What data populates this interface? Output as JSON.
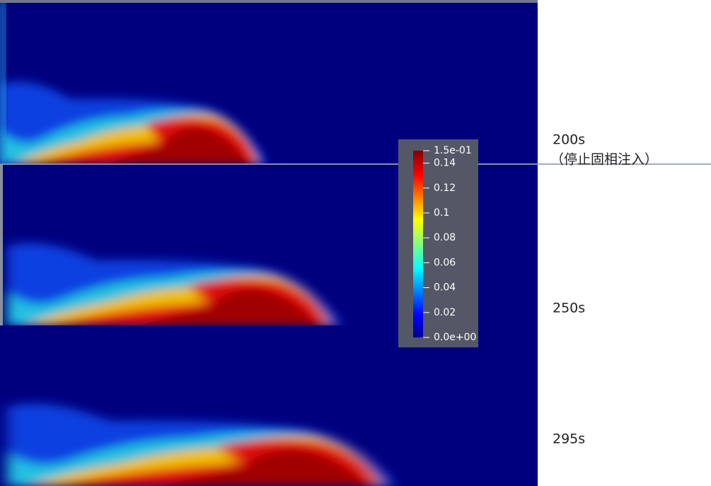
{
  "panels": [
    {
      "label": "200s",
      "note": "（停止固相注入）"
    },
    {
      "label": "250s"
    },
    {
      "label": "295s"
    }
  ],
  "colorbar": {
    "range": [
      0,
      0.15
    ],
    "ticks": [
      {
        "value": 0.15,
        "label": "1.5e-01"
      },
      0.14,
      0.12,
      0.1,
      0.08,
      0.06,
      0.04,
      0.02,
      {
        "value": 0,
        "label": "0.0e+00"
      }
    ]
  }
}
